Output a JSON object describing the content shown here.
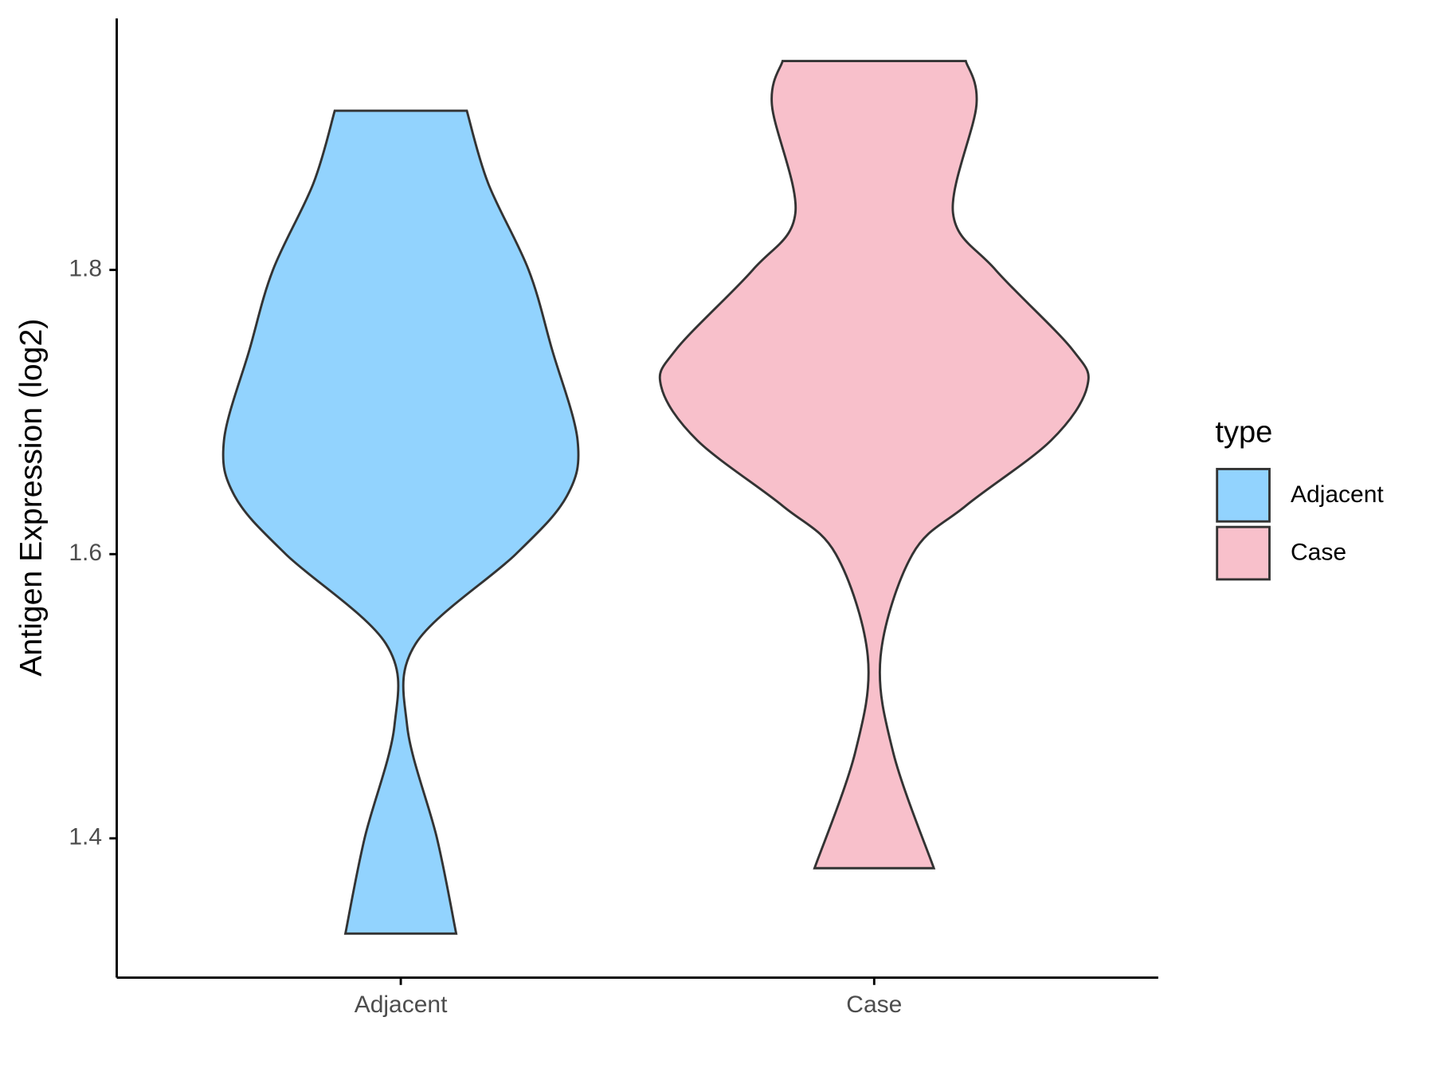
{
  "chart_data": {
    "type": "violin",
    "y_label": "Antigen Expression (log2)",
    "categories": [
      "Adjacent",
      "Case"
    ],
    "ylim": [
      1.302,
      1.977
    ],
    "yticks": [
      1.4,
      1.6,
      1.8
    ],
    "legend_title": "type",
    "legend_position": "right",
    "series": [
      {
        "name": "Adjacent",
        "color": "#92d3fe",
        "y": [
          1.912,
          1.861,
          1.8,
          1.744,
          1.68,
          1.641,
          1.6,
          1.537,
          1.479,
          1.4,
          1.333
        ],
        "density": [
          0.31,
          0.41,
          0.6,
          0.71,
          0.83,
          0.78,
          0.54,
          0.07,
          0.03,
          0.17,
          0.26
        ]
      },
      {
        "name": "Case",
        "color": "#f8c0cb",
        "y": [
          1.947,
          1.916,
          1.84,
          1.8,
          1.744,
          1.718,
          1.68,
          1.634,
          1.6,
          1.528,
          1.46,
          1.379
        ],
        "density": [
          0.43,
          0.48,
          0.37,
          0.57,
          0.93,
          1,
          0.83,
          0.43,
          0.18,
          0.03,
          0.09,
          0.28
        ]
      }
    ]
  }
}
